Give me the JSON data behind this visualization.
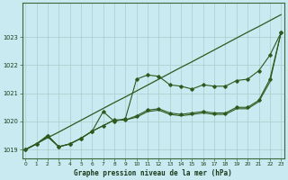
{
  "title": "Graphe pression niveau de la mer (hPa)",
  "background_color": "#c8eaf0",
  "grid_color": "#aacccc",
  "line_color": "#2d5a1e",
  "ylim": [
    1018.7,
    1024.2
  ],
  "yticks": [
    1019,
    1020,
    1021,
    1022,
    1023
  ],
  "xlim": [
    -0.3,
    23.3
  ],
  "xticks": [
    0,
    1,
    2,
    3,
    4,
    5,
    6,
    7,
    8,
    9,
    10,
    11,
    12,
    13,
    14,
    15,
    16,
    17,
    18,
    19,
    20,
    21,
    22,
    23
  ],
  "series_straight": [
    1019.0,
    1019.21,
    1019.42,
    1019.62,
    1019.83,
    1020.04,
    1020.25,
    1020.46,
    1020.67,
    1020.87,
    1021.08,
    1021.29,
    1021.5,
    1021.71,
    1021.92,
    1022.12,
    1022.33,
    1022.54,
    1022.75,
    1022.96,
    1023.17,
    1023.37,
    1023.58,
    1023.79
  ],
  "series_upper": [
    1019.0,
    1019.2,
    1019.5,
    1019.1,
    1019.2,
    1019.4,
    1019.65,
    1020.35,
    1020.0,
    1020.1,
    1021.5,
    1021.65,
    1021.6,
    1021.3,
    1021.25,
    1021.15,
    1021.3,
    1021.25,
    1021.25,
    1021.45,
    1021.5,
    1021.8,
    1022.35,
    1023.15
  ],
  "series_lower": [
    1019.0,
    1019.2,
    1019.5,
    1019.1,
    1019.2,
    1019.4,
    1019.65,
    1019.85,
    1020.05,
    1020.05,
    1020.2,
    1020.4,
    1020.45,
    1020.3,
    1020.25,
    1020.3,
    1020.35,
    1020.3,
    1020.3,
    1020.5,
    1020.5,
    1020.75,
    1021.5,
    1023.15
  ],
  "series_extra": [
    1019.0,
    1019.2,
    1019.45,
    1019.1,
    1019.2,
    1019.4,
    1019.65,
    1019.85,
    1020.05,
    1020.05,
    1020.15,
    1020.35,
    1020.4,
    1020.25,
    1020.2,
    1020.25,
    1020.3,
    1020.25,
    1020.25,
    1020.45,
    1020.45,
    1020.7,
    1021.4,
    1023.15
  ]
}
